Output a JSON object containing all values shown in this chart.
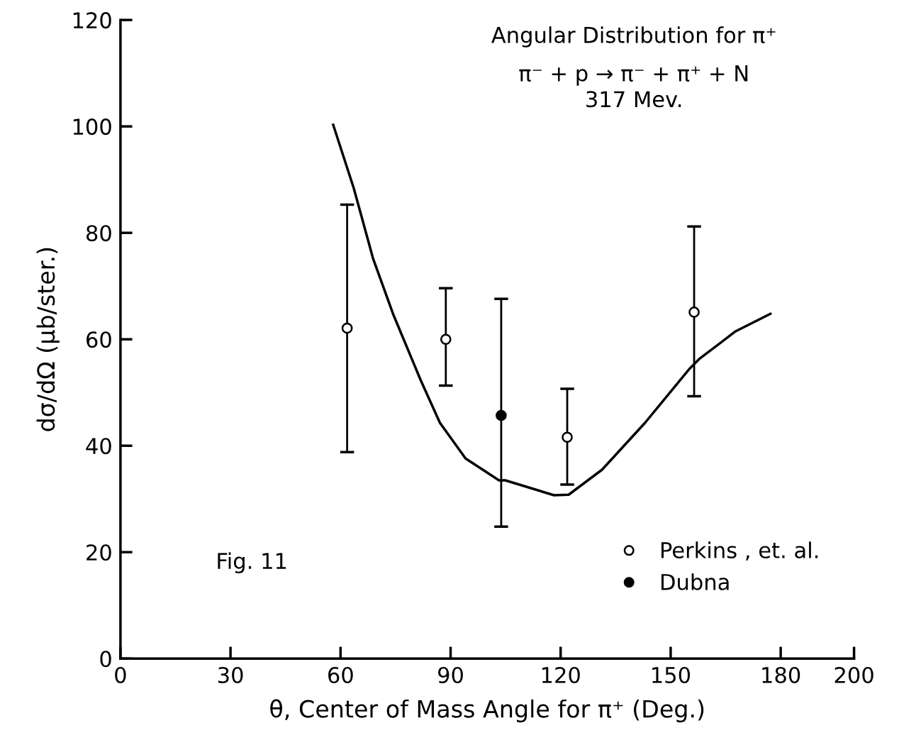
{
  "chart_data": {
    "type": "scatter",
    "title": "Angular Distribution for π⁺",
    "subtitle": "π⁻ + p → π⁻ + π⁺ + N\n317 Mev.",
    "xlabel": "θ, Center of Mass Angle for π⁺ (Deg.)",
    "ylabel": "dσ/dΩ (μb/ster.)",
    "annotations": [
      "Fig. 11"
    ],
    "xlim": [
      0,
      200
    ],
    "ylim": [
      0,
      120
    ],
    "xticks": [
      0,
      30,
      60,
      90,
      120,
      150,
      180,
      200
    ],
    "yticks": [
      0,
      20,
      40,
      60,
      80,
      100,
      120
    ],
    "grid": false,
    "legend": "bottom right",
    "marker": "circle",
    "series": [
      {
        "name": "Perkins , et. al.",
        "color": "#ffffff",
        "x": [
          61.8,
          88.7,
          121.8,
          156.4
        ],
        "values": [
          62.1,
          60,
          41.6,
          65.1
        ],
        "errors": [
          [
            38.8,
            85.3
          ],
          [
            51.3,
            69.6
          ],
          [
            32.7,
            50.7
          ],
          [
            49.3,
            81.2
          ]
        ]
      },
      {
        "name": "Dubna",
        "color": "#000000",
        "x": [
          103.8
        ],
        "values": [
          45.7
        ],
        "errors": [
          [
            24.8,
            67.6
          ]
        ]
      },
      {
        "type": "line",
        "marker": "none",
        "color": "#000000",
        "x": [
          58.0,
          63.6,
          68.9,
          74.3,
          81.8,
          87.1,
          94.1,
          103.2,
          104.9,
          118.2,
          122.2,
          131.3,
          143.0,
          155.2,
          157.8,
          167.7,
          177.2
        ],
        "values": [
          100.3,
          88.4,
          75.1,
          64.8,
          52.4,
          44.3,
          37.6,
          33.5,
          33.5,
          30.7,
          30.8,
          35.5,
          44.3,
          54.5,
          56.3,
          61.5,
          64.8
        ]
      }
    ]
  }
}
